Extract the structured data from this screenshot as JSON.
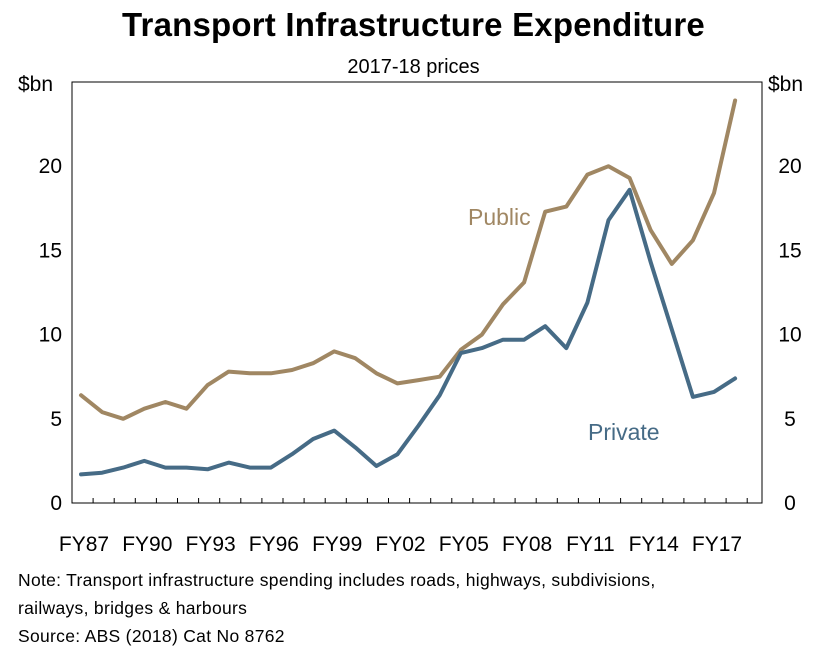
{
  "chart_data": {
    "type": "line",
    "title": "Transport Infrastructure Expenditure",
    "subtitle": "2017-18 prices",
    "ylabel_left": "$bn",
    "ylabel_right": "$bn",
    "ylim": [
      0,
      25
    ],
    "yticks": [
      0,
      5,
      10,
      15,
      20
    ],
    "x": [
      "FY87",
      "FY88",
      "FY89",
      "FY90",
      "FY91",
      "FY92",
      "FY93",
      "FY94",
      "FY95",
      "FY96",
      "FY97",
      "FY98",
      "FY99",
      "FY00",
      "FY01",
      "FY02",
      "FY03",
      "FY04",
      "FY05",
      "FY06",
      "FY07",
      "FY08",
      "FY09",
      "FY10",
      "FY11",
      "FY12",
      "FY13",
      "FY14",
      "FY15",
      "FY16",
      "FY17",
      "FY18"
    ],
    "xtick_labels": [
      "FY87",
      "FY90",
      "FY93",
      "FY96",
      "FY99",
      "FY02",
      "FY05",
      "FY08",
      "FY11",
      "FY14",
      "FY17"
    ],
    "series": [
      {
        "name": "Public",
        "color": "#a08763",
        "values": [
          6.4,
          5.4,
          5.0,
          5.6,
          6.0,
          5.6,
          7.0,
          7.8,
          7.7,
          7.7,
          7.9,
          8.3,
          9.0,
          8.6,
          7.7,
          7.1,
          7.3,
          7.5,
          9.1,
          10.0,
          11.8,
          13.1,
          17.3,
          17.6,
          19.5,
          20.0,
          19.3,
          16.2,
          14.2,
          15.6,
          18.4,
          23.9
        ]
      },
      {
        "name": "Private",
        "color": "#466b86",
        "values": [
          1.7,
          1.8,
          2.1,
          2.5,
          2.1,
          2.1,
          2.0,
          2.4,
          2.1,
          2.1,
          2.9,
          3.8,
          4.3,
          3.3,
          2.2,
          2.9,
          4.6,
          6.4,
          8.9,
          9.2,
          9.7,
          9.7,
          10.5,
          9.2,
          11.9,
          16.8,
          18.6,
          14.3,
          10.3,
          6.3,
          6.6,
          7.4
        ]
      }
    ]
  },
  "notes": {
    "line1": "Note: Transport infrastructure spending includes roads, highways, subdivisions,",
    "line2": "railways, bridges & harbours",
    "line3": "Source: ABS (2018) Cat No 8762"
  }
}
